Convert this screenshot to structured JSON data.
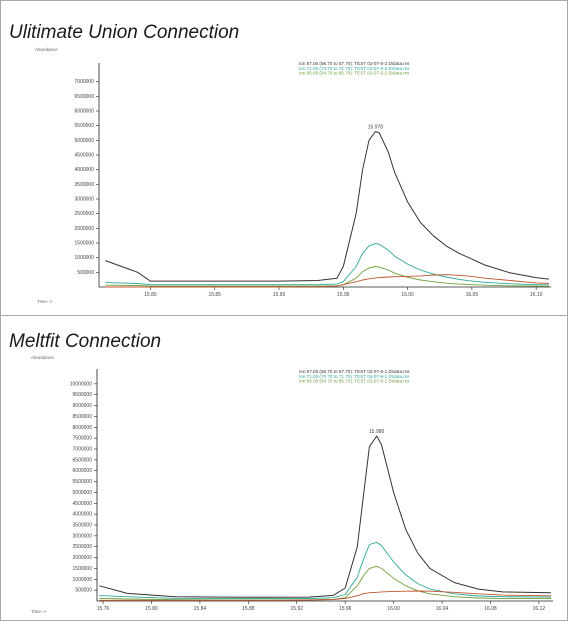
{
  "panels": [
    {
      "title": "Ulitimate Union Connection",
      "y_axis_title": "Abundance",
      "x_axis_title": "Time-->",
      "legend": [
        {
          "text": "Ion 57.00 (56.70 to 57.70): TEST 02-07-5-2.D\\data.ms",
          "color": "#333333"
        },
        {
          "text": "Ion 71.00 (70.70 to 71.70): TEST 02-07-5-2.D\\data.ms",
          "color": "#2aa894"
        },
        {
          "text": "Ion 85.00 (84.70 to 85.70): TEST 02-07-5-2.D\\data.ms",
          "color": "#6f9f3c"
        }
      ]
    },
    {
      "title": "Meltfit Connection",
      "y_axis_title": "Abundance",
      "x_axis_title": "Time-->",
      "legend": [
        {
          "text": "Ion 57.00 (56.70 to 57.70): TEST 02-07-6-1.D\\data.ms",
          "color": "#333333"
        },
        {
          "text": "Ion 71.00 (70.70 to 71.70): TEST 02-07-6-1.D\\data.ms",
          "color": "#2aa894"
        },
        {
          "text": "Ion 85.00 (84.70 to 85.70): TEST 02-07-6-1.D\\data.ms",
          "color": "#6f9f3c"
        }
      ]
    }
  ],
  "chart_data": [
    {
      "type": "line",
      "title": "Ulitimate Union Connection",
      "xlabel": "Time-->",
      "ylabel": "Abundance",
      "xlim": [
        15.76,
        16.11
      ],
      "ylim": [
        0,
        7500000
      ],
      "x_ticks": [
        "15.80",
        "15.85",
        "15.90",
        "15.95",
        "16.00",
        "16.05",
        "16.10"
      ],
      "y_ticks": [
        "500000",
        "1000000",
        "1500000",
        "2000000",
        "2500000",
        "3000000",
        "3500000",
        "4000000",
        "4500000",
        "5000000",
        "5500000",
        "6000000",
        "6500000",
        "7000000"
      ],
      "peak_label": "15.978",
      "grid": false,
      "legend_position": "top-center",
      "x": [
        15.765,
        15.79,
        15.8,
        15.85,
        15.9,
        15.93,
        15.945,
        15.95,
        15.96,
        15.965,
        15.97,
        15.975,
        15.978,
        15.985,
        15.99,
        16.0,
        16.01,
        16.02,
        16.03,
        16.04,
        16.05,
        16.06,
        16.08,
        16.1,
        16.11
      ],
      "series": [
        {
          "name": "Ion 57.00 (56.70 to 57.70): TEST 02-07-5-2.D\\data.ms",
          "color": "#333333",
          "values": [
            900000,
            500000,
            200000,
            200000,
            200000,
            220000,
            300000,
            700000,
            2500000,
            4000000,
            5000000,
            5300000,
            5250000,
            4600000,
            3900000,
            2900000,
            2200000,
            1750000,
            1400000,
            1150000,
            950000,
            750000,
            480000,
            320000,
            270000
          ]
        },
        {
          "name": "Ion 71.00 (70.70 to 71.70): TEST 02-07-5-2.D\\data.ms",
          "color": "#2aa894",
          "values": [
            150000,
            120000,
            80000,
            80000,
            80000,
            80000,
            100000,
            180000,
            700000,
            1150000,
            1400000,
            1480000,
            1460000,
            1250000,
            1050000,
            780000,
            580000,
            440000,
            340000,
            260000,
            200000,
            160000,
            110000,
            80000,
            70000
          ]
        },
        {
          "name": "Ion 85.00 (84.70 to 85.70): TEST 02-07-5-2.D\\data.ms",
          "color": "#6f9f3c",
          "values": [
            60000,
            50000,
            30000,
            30000,
            30000,
            30000,
            40000,
            70000,
            300000,
            520000,
            650000,
            700000,
            680000,
            580000,
            470000,
            330000,
            240000,
            180000,
            130000,
            100000,
            80000,
            60000,
            40000,
            30000,
            25000
          ]
        },
        {
          "name": "",
          "color": "#c0552e",
          "values": [
            0,
            0,
            0,
            0,
            0,
            10000,
            30000,
            80000,
            180000,
            240000,
            280000,
            310000,
            320000,
            340000,
            350000,
            360000,
            380000,
            410000,
            420000,
            400000,
            360000,
            300000,
            220000,
            140000,
            120000
          ]
        }
      ]
    },
    {
      "type": "line",
      "title": "Meltfit Connection",
      "xlabel": "Time-->",
      "ylabel": "Abundance",
      "xlim": [
        15.755,
        16.13
      ],
      "ylim": [
        0,
        10500000
      ],
      "x_ticks": [
        "15.76",
        "15.80",
        "15.84",
        "15.88",
        "15.92",
        "15.96",
        "16.00",
        "16.04",
        "16.08",
        "16.12"
      ],
      "y_ticks": [
        "500000",
        "1000000",
        "1500000",
        "2000000",
        "2500000",
        "3000000",
        "3500000",
        "4000000",
        "4500000",
        "5000000",
        "5500000",
        "6000000",
        "6500000",
        "7000000",
        "7500000",
        "8000000",
        "8500000",
        "9000000",
        "9500000",
        "10000000"
      ],
      "peak_label": "15.986",
      "grid": false,
      "legend_position": "top-center",
      "x": [
        15.757,
        15.78,
        15.82,
        15.86,
        15.9,
        15.93,
        15.95,
        15.96,
        15.97,
        15.975,
        15.98,
        15.986,
        15.99,
        16.0,
        16.01,
        16.02,
        16.03,
        16.05,
        16.07,
        16.09,
        16.13
      ],
      "series": [
        {
          "name": "Ion 57.00 (56.70 to 57.70): TEST 02-07-6-1.D\\data.ms",
          "color": "#333333",
          "values": [
            700000,
            350000,
            200000,
            180000,
            170000,
            180000,
            260000,
            600000,
            2500000,
            4800000,
            7100000,
            7600000,
            7200000,
            5000000,
            3300000,
            2200000,
            1500000,
            850000,
            550000,
            420000,
            380000
          ]
        },
        {
          "name": "Ion 71.00 (70.70 to 71.70): TEST 02-07-6-1.D\\data.ms",
          "color": "#2aa894",
          "values": [
            250000,
            200000,
            120000,
            110000,
            110000,
            110000,
            150000,
            300000,
            1100000,
            1900000,
            2600000,
            2700000,
            2550000,
            1800000,
            1200000,
            800000,
            550000,
            330000,
            230000,
            200000,
            180000
          ]
        },
        {
          "name": "Ion 85.00 (84.70 to 85.70): TEST 02-07-6-1.D\\data.ms",
          "color": "#6f9f3c",
          "values": [
            120000,
            90000,
            60000,
            50000,
            50000,
            55000,
            70000,
            150000,
            700000,
            1150000,
            1500000,
            1600000,
            1500000,
            1050000,
            700000,
            470000,
            330000,
            200000,
            140000,
            120000,
            110000
          ]
        },
        {
          "name": "",
          "color": "#c0552e",
          "values": [
            30000,
            30000,
            30000,
            30000,
            30000,
            40000,
            70000,
            120000,
            240000,
            330000,
            380000,
            400000,
            420000,
            440000,
            450000,
            460000,
            450000,
            400000,
            330000,
            270000,
            240000
          ]
        }
      ]
    }
  ]
}
